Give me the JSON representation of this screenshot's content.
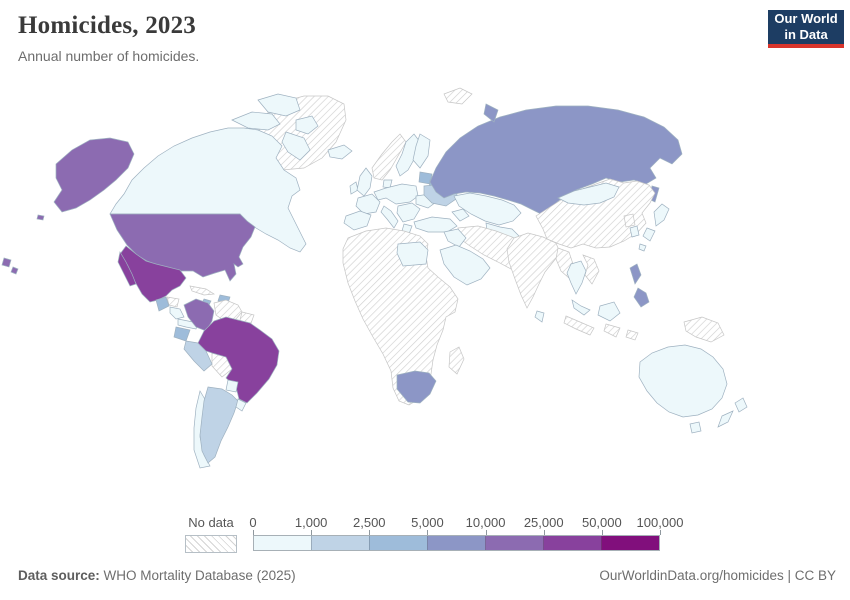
{
  "header": {
    "title": "Homicides, 2023",
    "subtitle": "Annual number of homicides."
  },
  "logo": {
    "line1": "Our World",
    "line2": "in Data",
    "bg_color": "#1d3d63",
    "accent_color": "#d8352c"
  },
  "legend": {
    "no_data_label": "No data",
    "tick_labels": [
      "0",
      "1,000",
      "2,500",
      "5,000",
      "10,000",
      "25,000",
      "50,000",
      "100,000"
    ],
    "bin_colors": [
      "#edf8fb",
      "#bfd3e6",
      "#9ebcda",
      "#8c96c6",
      "#8c6bb1",
      "#88419d",
      "#810f7c"
    ],
    "bin_ranges": [
      "0-1,000",
      "1,000-2,500",
      "2,500-5,000",
      "5,000-10,000",
      "10,000-25,000",
      "25,000-50,000",
      "50,000-100,000"
    ]
  },
  "footer": {
    "source_label": "Data source:",
    "source_value": " WHO Mortality Database (2025)",
    "right_text": "OurWorldinData.org/homicides | CC BY"
  },
  "map": {
    "ocean_color": "#ffffff",
    "border_color": "#9eb1c0",
    "no_data_border_color": "#c6c6c6",
    "countries": {
      "canada": 0,
      "usa": 4,
      "greenland": "no-data",
      "mexico": 5,
      "guatemala": 2,
      "honduras": "no-data",
      "nicaragua": 0,
      "costa-rica-panama": 0,
      "cuba": "no-data",
      "jamaica": 2,
      "hispaniola": 2,
      "colombia": 4,
      "venezuela": "no-data",
      "guyanas": "no-data",
      "ecuador": 2,
      "peru": 1,
      "bolivia": "no-data",
      "brazil": 5,
      "paraguay": 0,
      "argentina": 1,
      "chile": 0,
      "uruguay": 0,
      "iceland": 0,
      "uk": 0,
      "ireland": 0,
      "norway": "no-data",
      "sweden": 0,
      "finland": 0,
      "denmark": 0,
      "baltics": 2,
      "belarus": 2,
      "central-europe": 0,
      "france": 0,
      "iberia": 0,
      "italy": 0,
      "balkans": 0,
      "romania": 0,
      "greece": 0,
      "ukraine": 1,
      "turkey": 0,
      "russia": 3,
      "svalbard": "no-data",
      "novaya-zemlya": 3,
      "kazakhstan": 0,
      "central-asia": 0,
      "caucasus": 0,
      "iran-afg-pak": "no-data",
      "iraq-syria": 0,
      "arabia": 0,
      "egypt": 0,
      "africa": "no-data",
      "south-africa": 3,
      "madagascar": "no-data",
      "india": "no-data",
      "sri-lanka": 0,
      "china": "no-data",
      "mongolia": 0,
      "north-korea": "no-data",
      "south-korea": 0,
      "japan": 0,
      "myanmar": "no-data",
      "thailand": 0,
      "vietnam": "no-data",
      "malaysia": 0,
      "borneo": 0,
      "philippines": 3,
      "indonesia": "no-data",
      "new-guinea": "no-data",
      "australia": 0,
      "tasmania": 0,
      "new-zealand": 0
    }
  }
}
